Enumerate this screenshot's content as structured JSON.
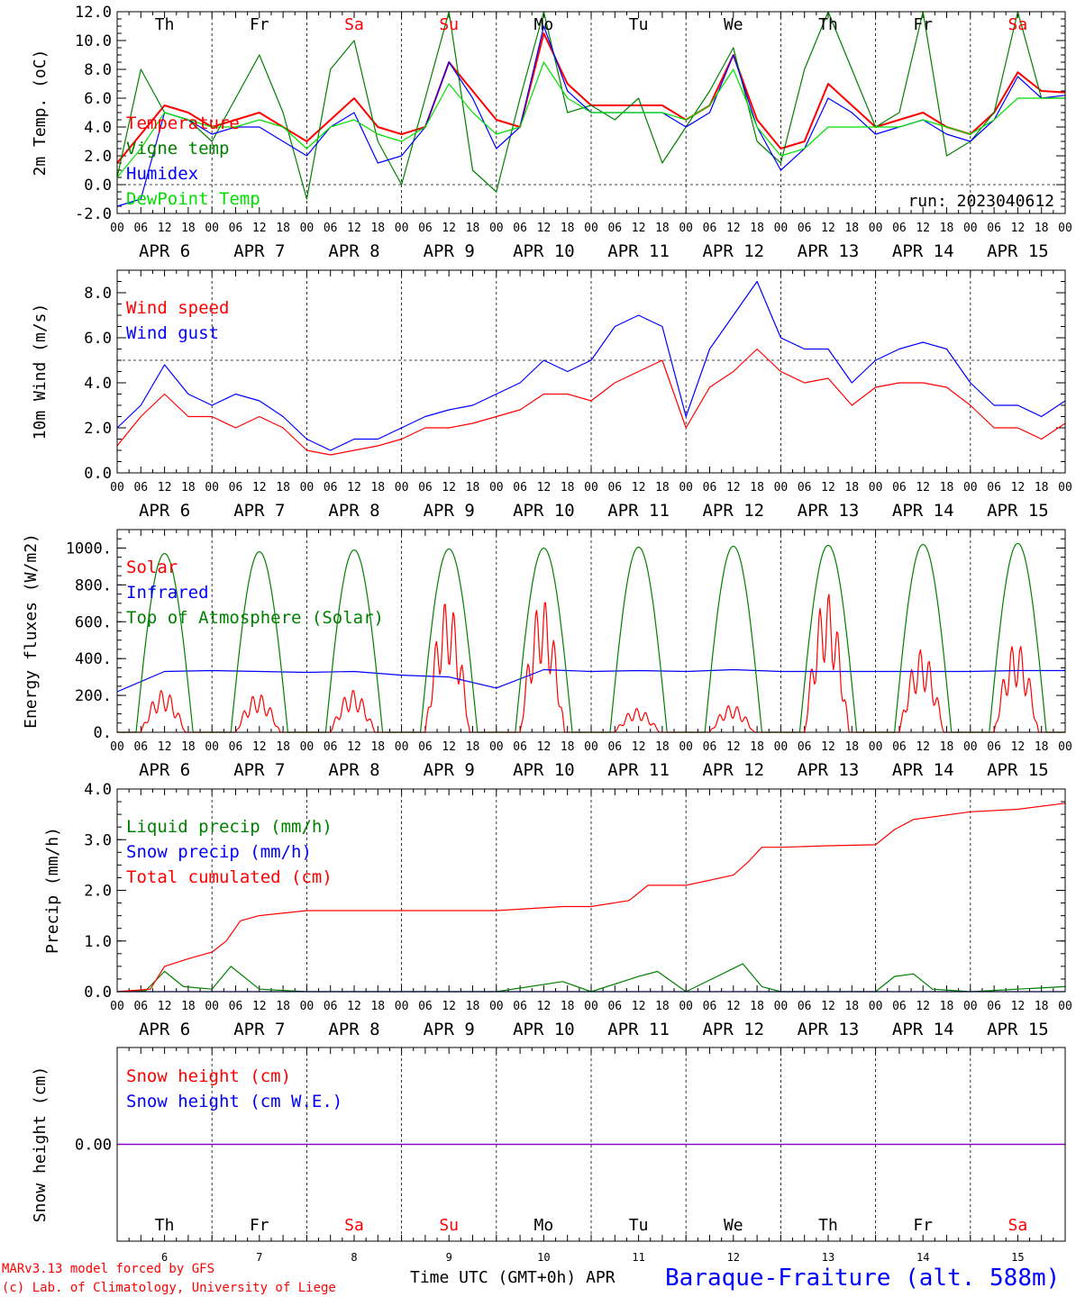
{
  "run_label": "run: 2023040612",
  "footer": {
    "credit1": "MARv3.13 model forced by GFS",
    "credit2": "(c) Lab. of Climatology, University of Liege",
    "xlabel": "Time UTC (GMT+0h) APR",
    "station": "Baraque-Fraiture (alt. 588m)"
  },
  "colors": {
    "red": "#ff0000",
    "green": "#008000",
    "blue": "#0000ff",
    "lightgreen": "#00e000",
    "purple": "#7f00bf",
    "weekend": "#ff0000"
  },
  "days": [
    {
      "dow": "Th",
      "date": "APR  6",
      "num": "6",
      "weekend": false
    },
    {
      "dow": "Fr",
      "date": "APR  7",
      "num": "7",
      "weekend": false
    },
    {
      "dow": "Sa",
      "date": "APR  8",
      "num": "8",
      "weekend": true
    },
    {
      "dow": "Su",
      "date": "APR  9",
      "num": "9",
      "weekend": true
    },
    {
      "dow": "Mo",
      "date": "APR 10",
      "num": "10",
      "weekend": false
    },
    {
      "dow": "Tu",
      "date": "APR 11",
      "num": "11",
      "weekend": false
    },
    {
      "dow": "We",
      "date": "APR 12",
      "num": "12",
      "weekend": false
    },
    {
      "dow": "Th",
      "date": "APR 13",
      "num": "13",
      "weekend": false
    },
    {
      "dow": "Fr",
      "date": "APR 14",
      "num": "14",
      "weekend": false
    },
    {
      "dow": "Sa",
      "date": "APR 15",
      "num": "15",
      "weekend": true
    }
  ],
  "hour_ticks": [
    "00",
    "06",
    "12",
    "18"
  ],
  "final_tick": "00",
  "chart_data": [
    {
      "type": "line",
      "ylabel": "2m Temp. (oC)",
      "ylim": [
        -2,
        12
      ],
      "yticks": [
        "-2.0",
        "0.0",
        "2.0",
        "4.0",
        "6.0",
        "8.0",
        "10.0",
        "12.0"
      ],
      "ytick_values": [
        -2,
        0,
        2,
        4,
        6,
        8,
        10,
        12
      ],
      "ref_line": 0,
      "x_unit": "day index (0 = APR 6 00UTC)",
      "series": [
        {
          "name": "Temperature",
          "color": "red",
          "x": [
            0,
            0.25,
            0.5,
            0.75,
            1,
            1.25,
            1.5,
            1.75,
            2,
            2.25,
            2.5,
            2.75,
            3,
            3.25,
            3.5,
            3.75,
            4,
            4.25,
            4.5,
            4.75,
            5,
            5.25,
            5.5,
            5.75,
            6,
            6.25,
            6.5,
            6.75,
            7,
            7.25,
            7.5,
            7.75,
            8,
            8.25,
            8.5,
            8.75,
            9,
            9.25,
            9.5,
            9.75,
            10
          ],
          "values": [
            1.5,
            3.5,
            5.5,
            5.0,
            4.0,
            4.5,
            5.0,
            4.0,
            3.0,
            4.5,
            6.0,
            4.0,
            3.5,
            4.0,
            8.5,
            6.5,
            4.5,
            4.0,
            10.5,
            7.0,
            5.5,
            5.5,
            5.5,
            5.5,
            4.5,
            5.5,
            9.0,
            4.5,
            2.5,
            3.0,
            7.0,
            5.5,
            4.0,
            4.5,
            5.0,
            4.0,
            3.5,
            5.0,
            7.8,
            6.5,
            6.4
          ]
        },
        {
          "name": "Vigne temp",
          "color": "green",
          "x": [
            0,
            0.25,
            0.5,
            0.75,
            1,
            1.25,
            1.5,
            1.75,
            2,
            2.25,
            2.5,
            2.75,
            3,
            3.25,
            3.5,
            3.75,
            4,
            4.25,
            4.5,
            4.75,
            5,
            5.25,
            5.5,
            5.75,
            6,
            6.25,
            6.5,
            6.75,
            7,
            7.25,
            7.5,
            7.75,
            8,
            8.25,
            8.5,
            8.75,
            9,
            9.25,
            9.5,
            9.75,
            10
          ],
          "values": [
            0.5,
            8.0,
            5.0,
            4.5,
            3.0,
            6.0,
            9.0,
            5.0,
            -1.0,
            8.0,
            10.0,
            3.0,
            0.0,
            6.0,
            12.0,
            1.0,
            -0.5,
            6.0,
            12.0,
            5.0,
            5.5,
            4.5,
            6.0,
            1.5,
            4.0,
            6.5,
            9.5,
            3.0,
            1.5,
            8.0,
            12.0,
            8.0,
            4.0,
            5.0,
            12.0,
            2.0,
            3.0,
            5.0,
            12.0,
            6.0,
            6.0
          ]
        },
        {
          "name": "Humidex",
          "color": "blue",
          "x": [
            0,
            0.25,
            0.5,
            0.75,
            1,
            1.25,
            1.5,
            1.75,
            2,
            2.25,
            2.5,
            2.75,
            3,
            3.25,
            3.5,
            3.75,
            4,
            4.25,
            4.5,
            4.75,
            5,
            5.25,
            5.5,
            5.75,
            6,
            6.25,
            6.5,
            6.75,
            7,
            7.25,
            7.5,
            7.75,
            8,
            8.25,
            8.5,
            8.75,
            9,
            9.25,
            9.5,
            9.75,
            10
          ],
          "values": [
            -1.5,
            -1.0,
            5.0,
            4.5,
            3.5,
            4.0,
            4.0,
            3.0,
            2.0,
            4.0,
            5.0,
            1.5,
            2.0,
            4.0,
            8.5,
            6.0,
            2.5,
            4.0,
            11.0,
            6.5,
            5.0,
            5.0,
            5.0,
            5.0,
            4.0,
            5.0,
            9.0,
            4.0,
            1.0,
            2.5,
            6.0,
            5.0,
            3.5,
            4.0,
            4.5,
            3.5,
            3.0,
            4.5,
            7.5,
            6.0,
            6.2
          ]
        },
        {
          "name": "DewPoint Temp",
          "color": "lightgreen",
          "x": [
            0,
            0.25,
            0.5,
            0.75,
            1,
            1.25,
            1.5,
            1.75,
            2,
            2.25,
            2.5,
            2.75,
            3,
            3.25,
            3.5,
            3.75,
            4,
            4.25,
            4.5,
            4.75,
            5,
            5.25,
            5.5,
            5.75,
            6,
            6.25,
            6.5,
            6.75,
            7,
            7.25,
            7.5,
            7.75,
            8,
            8.25,
            8.5,
            8.75,
            9,
            9.25,
            9.5,
            9.75,
            10
          ],
          "values": [
            0.5,
            2.5,
            5.0,
            4.5,
            4.0,
            4.0,
            4.5,
            4.0,
            2.5,
            4.0,
            4.5,
            3.5,
            3.0,
            4.0,
            7.0,
            5.0,
            3.5,
            4.0,
            8.5,
            6.0,
            5.0,
            5.0,
            5.0,
            5.0,
            4.5,
            5.5,
            8.0,
            4.0,
            2.0,
            2.5,
            4.0,
            4.0,
            4.0,
            4.0,
            4.5,
            4.0,
            3.5,
            4.5,
            6.0,
            6.0,
            6.0
          ]
        }
      ]
    },
    {
      "type": "line",
      "ylabel": "10m Wind (m/s)",
      "ylim": [
        0,
        9
      ],
      "yticks": [
        "0.0",
        "2.0",
        "4.0",
        "6.0",
        "8.0"
      ],
      "ytick_values": [
        0,
        2,
        4,
        6,
        8
      ],
      "ref_line": 5,
      "series": [
        {
          "name": "Wind speed",
          "color": "red",
          "x": [
            0,
            0.25,
            0.5,
            0.75,
            1,
            1.25,
            1.5,
            1.75,
            2,
            2.25,
            2.5,
            2.75,
            3,
            3.25,
            3.5,
            3.75,
            4,
            4.25,
            4.5,
            4.75,
            5,
            5.25,
            5.5,
            5.75,
            6,
            6.25,
            6.5,
            6.75,
            7,
            7.25,
            7.5,
            7.75,
            8,
            8.25,
            8.5,
            8.75,
            9,
            9.25,
            9.5,
            9.75,
            10
          ],
          "values": [
            1.2,
            2.5,
            3.5,
            2.5,
            2.5,
            2.0,
            2.5,
            2.0,
            1.0,
            0.8,
            1.0,
            1.2,
            1.5,
            2.0,
            2.0,
            2.2,
            2.5,
            2.8,
            3.5,
            3.5,
            3.2,
            4.0,
            4.5,
            5.0,
            2.0,
            3.8,
            4.5,
            5.5,
            4.5,
            4.0,
            4.2,
            3.0,
            3.8,
            4.0,
            4.0,
            3.8,
            3.0,
            2.0,
            2.0,
            1.5,
            2.2
          ]
        },
        {
          "name": "Wind gust",
          "color": "blue",
          "x": [
            0,
            0.25,
            0.5,
            0.75,
            1,
            1.25,
            1.5,
            1.75,
            2,
            2.25,
            2.5,
            2.75,
            3,
            3.25,
            3.5,
            3.75,
            4,
            4.25,
            4.5,
            4.75,
            5,
            5.25,
            5.5,
            5.75,
            6,
            6.25,
            6.5,
            6.75,
            7,
            7.25,
            7.5,
            7.75,
            8,
            8.25,
            8.5,
            8.75,
            9,
            9.25,
            9.5,
            9.75,
            10
          ],
          "values": [
            2.0,
            3.0,
            4.8,
            3.5,
            3.0,
            3.5,
            3.2,
            2.5,
            1.5,
            1.0,
            1.5,
            1.5,
            2.0,
            2.5,
            2.8,
            3.0,
            3.5,
            4.0,
            5.0,
            4.5,
            5.0,
            6.5,
            7.0,
            6.5,
            2.5,
            5.5,
            7.0,
            8.5,
            6.0,
            5.5,
            5.5,
            4.0,
            5.0,
            5.5,
            5.8,
            5.5,
            4.0,
            3.0,
            3.0,
            2.5,
            3.2
          ]
        }
      ]
    },
    {
      "type": "line",
      "ylabel": "Energy fluxes (W/m2)",
      "ylim": [
        0,
        1100
      ],
      "yticks": [
        "0.",
        "200.",
        "400.",
        "600.",
        "800.",
        "1000."
      ],
      "ytick_values": [
        0,
        200,
        400,
        600,
        800,
        1000
      ],
      "series": [
        {
          "name": "Solar",
          "color": "red",
          "peaks": [
            230,
            210,
            230,
            720,
            730,
            130,
            150,
            760,
            450,
            490
          ],
          "peak_note": "daily maximum, W/m2"
        },
        {
          "name": "Infrared",
          "color": "blue",
          "x": [
            0,
            0.5,
            1,
            1.5,
            2,
            2.5,
            3,
            3.5,
            4,
            4.5,
            5,
            5.5,
            6,
            6.5,
            7,
            7.5,
            8,
            8.5,
            9,
            9.5,
            10
          ],
          "values": [
            220,
            330,
            335,
            330,
            325,
            330,
            310,
            300,
            240,
            340,
            330,
            335,
            330,
            340,
            330,
            330,
            330,
            330,
            330,
            335,
            335
          ]
        },
        {
          "name": "Top of Atmosphere (Solar)",
          "color": "green",
          "peaks": [
            970,
            980,
            990,
            995,
            1000,
            1005,
            1010,
            1015,
            1020,
            1025
          ],
          "peak_note": "daily maximum, W/m2"
        }
      ]
    },
    {
      "type": "line",
      "ylabel": "Precip (mm/h)",
      "ylim": [
        0,
        4
      ],
      "yticks": [
        "0.0",
        "1.0",
        "2.0",
        "3.0",
        "4.0"
      ],
      "ytick_values": [
        0,
        1,
        2,
        3,
        4
      ],
      "series": [
        {
          "name": "Liquid precip (mm/h)",
          "color": "green",
          "x": [
            0,
            0.3,
            0.5,
            0.7,
            1,
            1.2,
            1.5,
            2,
            3,
            4,
            4.7,
            5,
            5.5,
            5.7,
            6,
            6.6,
            6.8,
            7,
            8,
            8.2,
            8.4,
            8.6,
            9,
            10
          ],
          "values": [
            0,
            0.02,
            0.4,
            0.1,
            0.05,
            0.5,
            0.05,
            0,
            0,
            0,
            0.2,
            0,
            0.3,
            0.4,
            0,
            0.55,
            0.1,
            0,
            0,
            0.3,
            0.35,
            0.05,
            0,
            0.1
          ]
        },
        {
          "name": "Snow precip (mm/h)",
          "color": "blue",
          "x": [
            0,
            10
          ],
          "values": [
            0,
            0
          ]
        },
        {
          "name": "Total cumulated (cm)",
          "color": "red",
          "x": [
            0,
            0.35,
            0.5,
            0.75,
            1,
            1.15,
            1.3,
            1.5,
            2,
            3,
            4,
            4.7,
            5,
            5.4,
            5.6,
            6,
            6.5,
            6.65,
            6.8,
            7,
            7.5,
            8,
            8.2,
            8.4,
            9,
            9.5,
            10
          ],
          "values": [
            0,
            0.05,
            0.5,
            0.65,
            0.78,
            1.0,
            1.4,
            1.5,
            1.6,
            1.6,
            1.6,
            1.68,
            1.68,
            1.8,
            2.1,
            2.1,
            2.3,
            2.55,
            2.85,
            2.85,
            2.88,
            2.9,
            3.2,
            3.4,
            3.55,
            3.6,
            3.72
          ]
        }
      ]
    },
    {
      "type": "line",
      "ylabel": "Snow height (cm)",
      "ylim": [
        -1,
        1
      ],
      "yticks": [
        "0.00"
      ],
      "ytick_values": [
        0
      ],
      "series": [
        {
          "name": "Snow height (cm)",
          "color": "red",
          "x": [
            0,
            10
          ],
          "values": [
            0,
            0
          ]
        },
        {
          "name": "Snow height (cm W.E.)",
          "color": "blue",
          "x": [
            0,
            10
          ],
          "values": [
            0,
            0
          ]
        }
      ]
    }
  ]
}
